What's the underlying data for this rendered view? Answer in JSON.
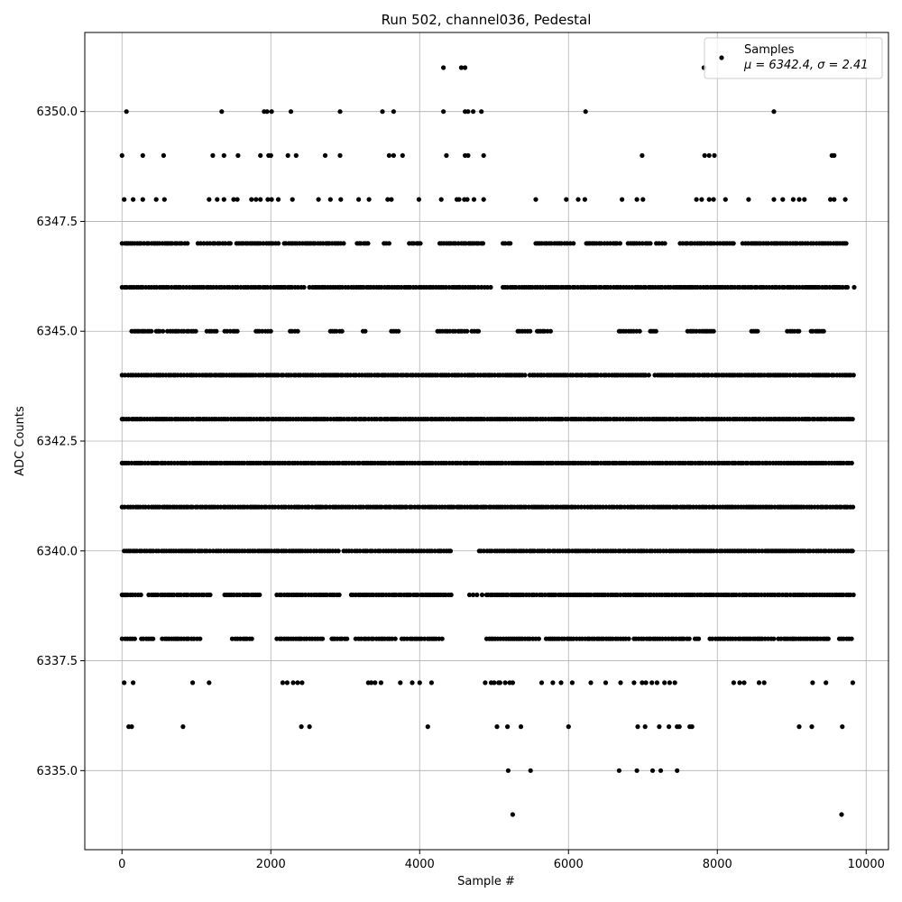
{
  "chart_data": {
    "type": "scatter",
    "title": "Run 502, channel036, Pedestal",
    "xlabel": "Sample #",
    "ylabel": "ADC Counts",
    "xlim": [
      -500,
      10300
    ],
    "ylim": [
      6333.2,
      6351.8
    ],
    "xticks": [
      0,
      2000,
      4000,
      6000,
      8000,
      10000
    ],
    "yticks": [
      6335.0,
      6337.5,
      6340.0,
      6342.5,
      6345.0,
      6347.5,
      6350.0
    ],
    "xtick_labels": [
      "0",
      "2000",
      "4000",
      "6000",
      "8000",
      "10000"
    ],
    "ytick_labels": [
      "6335.0",
      "6337.5",
      "6340.0",
      "6342.5",
      "6345.0",
      "6347.5",
      "6350.0"
    ],
    "grid": true,
    "legend_position": "top-right",
    "marker_color": "#000000",
    "series": [
      {
        "name": "Samples",
        "legend_math": "μ = 6342.4, σ = 2.41",
        "levels": [
          {
            "y": 6334,
            "x": [
              5250,
              9670
            ]
          },
          {
            "y": 6335,
            "x": [
              5190,
              5490,
              6680,
              6920,
              7130,
              7240,
              7460
            ]
          },
          {
            "y": 6336,
            "x": [
              90,
              130,
              820,
              2410,
              2520,
              4110,
              5040,
              5180,
              5360,
              6000,
              6930,
              7030,
              7220,
              7350,
              7460,
              7490,
              7630,
              7660,
              9100,
              9270,
              9680
            ]
          },
          {
            "y": 6337,
            "x": [
              30,
              150,
              950,
              1170,
              2160,
              2220,
              2300,
              2360,
              2420,
              3310,
              3350,
              3400,
              3480,
              3740,
              3900,
              4000,
              4160,
              4880,
              4960,
              5000,
              5060,
              5080,
              5150,
              5210,
              5250,
              5640,
              5790,
              5900,
              6050,
              6300,
              6500,
              6700,
              6880,
              6990,
              7040,
              7120,
              7190,
              7290,
              7360,
              7430,
              8220,
              8300,
              8360,
              8560,
              8630,
              9280,
              9460,
              9820
            ]
          },
          {
            "y": 6339,
            "x": [
              20,
              50,
              3660,
              3830,
              4670,
              4720,
              4770,
              4840
            ]
          },
          {
            "y": 6346,
            "x": [
              9840
            ]
          },
          {
            "y": 6348,
            "x": [
              30,
              150,
              280,
              460,
              570,
              1170,
              1280,
              1370,
              1500,
              1550,
              1740,
              1800,
              1860,
              1960,
              2010,
              2100,
              2290,
              2640,
              2800,
              2940,
              3180,
              3320,
              3570,
              3620,
              3990,
              4290,
              4500,
              4530,
              4600,
              4640,
              4730,
              4860,
              5560,
              5970,
              6130,
              6220,
              6720,
              6920,
              7000,
              7720,
              7790,
              7890,
              7950,
              8110,
              8420,
              8760,
              8880,
              9020,
              9100,
              9170,
              9520,
              9570,
              9720
            ]
          },
          {
            "y": 6349,
            "x": [
              0,
              280,
              560,
              1220,
              1370,
              1560,
              1860,
              1970,
              2000,
              2230,
              2340,
              2730,
              2930,
              3590,
              3650,
              3770,
              4360,
              4610,
              4650,
              4860,
              6990,
              7830,
              7890,
              7960,
              9540,
              9570
            ]
          },
          {
            "y": 6350,
            "x": [
              60,
              1340,
              1910,
              1950,
              2010,
              2270,
              2930,
              3500,
              3650,
              4320,
              4610,
              4650,
              4720,
              4830,
              6230,
              8760
            ]
          },
          {
            "y": 6351,
            "x": [
              4320,
              4560,
              4610,
              7820
            ]
          }
        ],
        "dense_levels": [
          {
            "y": 6338,
            "segments": [
              [
                0,
                180
              ],
              [
                260,
                420
              ],
              [
                540,
                1080
              ],
              [
                1480,
                1760
              ],
              [
                2080,
                2700
              ],
              [
                2820,
                3040
              ],
              [
                3140,
                3700
              ],
              [
                3760,
                4320
              ],
              [
                4900,
                5620
              ],
              [
                5700,
                6840
              ],
              [
                6880,
                7640
              ],
              [
                7700,
                7760
              ],
              [
                7900,
                8760
              ],
              [
                8820,
                8860
              ],
              [
                8900,
                9520
              ],
              [
                9640,
                9840
              ]
            ]
          },
          {
            "y": 6339,
            "segments": [
              [
                0,
                260
              ],
              [
                360,
                1200
              ],
              [
                1380,
                1860
              ],
              [
                2080,
                2920
              ],
              [
                3080,
                3980
              ],
              [
                4020,
                4440
              ],
              [
                4900,
                9840
              ]
            ]
          },
          {
            "y": 6340,
            "segments": [
              [
                30,
                2940
              ],
              [
                2980,
                4440
              ],
              [
                4800,
                9840
              ]
            ]
          },
          {
            "y": 6341,
            "segments": [
              [
                0,
                9840
              ]
            ]
          },
          {
            "y": 6342,
            "segments": [
              [
                0,
                9840
              ]
            ]
          },
          {
            "y": 6343,
            "segments": [
              [
                0,
                9840
              ]
            ]
          },
          {
            "y": 6344,
            "segments": [
              [
                0,
                5420
              ],
              [
                5480,
                7100
              ],
              [
                7160,
                9840
              ]
            ]
          },
          {
            "y": 6345,
            "segments": [
              [
                130,
                420
              ],
              [
                460,
                560
              ],
              [
                610,
                1000
              ],
              [
                1140,
                1280
              ],
              [
                1380,
                1580
              ],
              [
                1800,
                2000
              ],
              [
                2260,
                2380
              ],
              [
                2800,
                2960
              ],
              [
                3240,
                3300
              ],
              [
                3620,
                3740
              ],
              [
                4240,
                4640
              ],
              [
                4700,
                4800
              ],
              [
                5320,
                5520
              ],
              [
                5580,
                5780
              ],
              [
                6680,
                6960
              ],
              [
                7100,
                7200
              ],
              [
                7600,
                7960
              ],
              [
                8460,
                8560
              ],
              [
                8940,
                9120
              ],
              [
                9260,
                9440
              ]
            ]
          },
          {
            "y": 6346,
            "segments": [
              [
                0,
                2460
              ],
              [
                2520,
                4980
              ],
              [
                5120,
                9760
              ]
            ]
          },
          {
            "y": 6347,
            "segments": [
              [
                0,
                900
              ],
              [
                1020,
                1480
              ],
              [
                1540,
                2120
              ],
              [
                2180,
                3000
              ],
              [
                3160,
                3320
              ],
              [
                3520,
                3600
              ],
              [
                3860,
                4020
              ],
              [
                4270,
                4860
              ],
              [
                5120,
                5240
              ],
              [
                5560,
                6100
              ],
              [
                6240,
                6700
              ],
              [
                6800,
                7100
              ],
              [
                7180,
                7300
              ],
              [
                7500,
                7960
              ],
              [
                8000,
                8260
              ],
              [
                8340,
                9760
              ]
            ]
          }
        ]
      }
    ]
  }
}
